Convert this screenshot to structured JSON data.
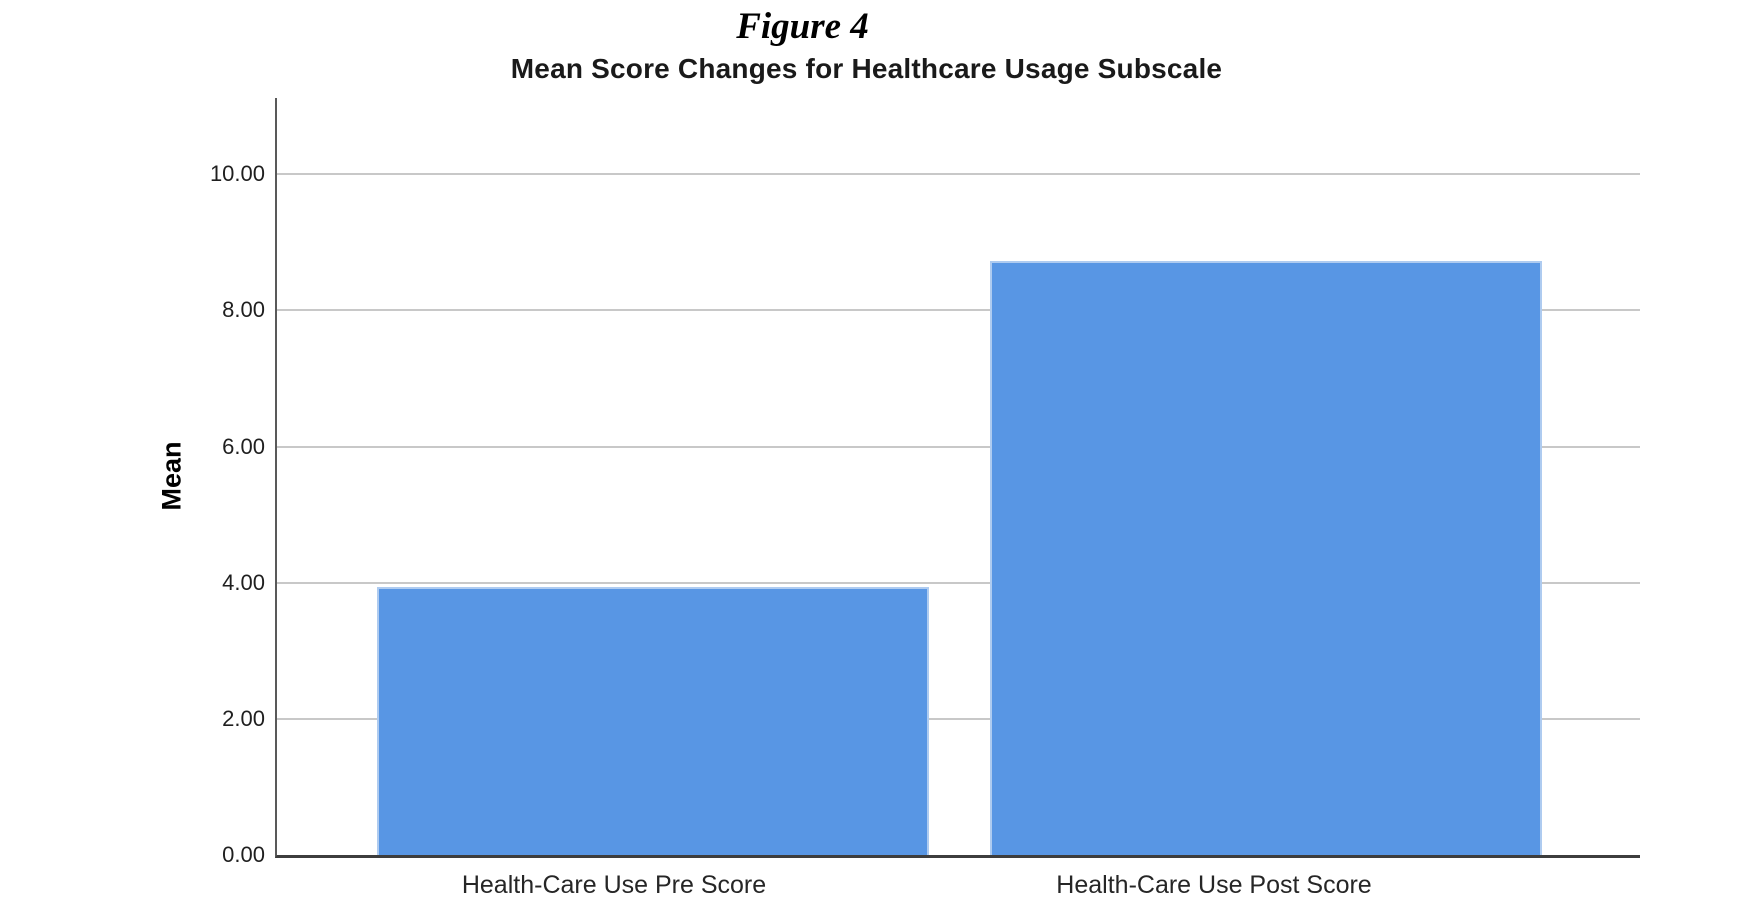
{
  "figure_label": "Figure 4",
  "chart_data": {
    "type": "bar",
    "title": "Mean Score Changes for Healthcare Usage Subscale",
    "xlabel": "",
    "ylabel": "Mean",
    "categories": [
      "Health-Care Use Pre Score",
      "Health-Care Use Post Score"
    ],
    "values": [
      3.93,
      8.73
    ],
    "ylim": [
      0,
      11.12
    ],
    "yticks": [
      0,
      2,
      4,
      6,
      8,
      10
    ],
    "ytick_labels": [
      "0.00",
      "2.00",
      "4.00",
      "6.00",
      "8.00",
      "10.00"
    ],
    "grid": true,
    "legend_position": "none",
    "bar_color": "#5896e4",
    "gridline_color": "#c8c8c8",
    "axis_color": "#3d3d3d"
  }
}
